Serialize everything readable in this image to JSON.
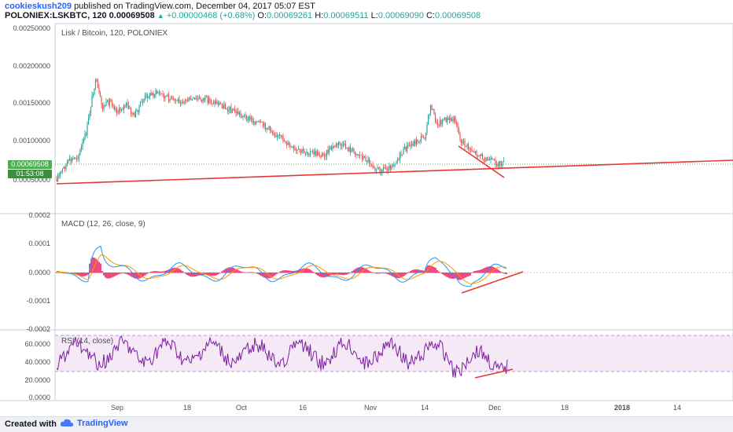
{
  "header": {
    "author": "cookieskush209",
    "published_text": "published on TradingView.com, December 04, 2017 05:07 EST",
    "symbol": "POLONIEX:LSKBTC, 120",
    "last": "0.00069508",
    "change": "+0.00000468 (+0.68%)",
    "o_label": "O:",
    "o_val": "0.00069261",
    "h_label": "H:",
    "h_val": "0.00069511",
    "l_label": "L:",
    "l_val": "0.00069090",
    "c_label": "C:",
    "c_val": "0.00069508"
  },
  "price_pane": {
    "title": "Lisk / Bitcoin, 120, POLONIEX",
    "y_ticks": [
      "0.00250000",
      "0.00200000",
      "0.00150000",
      "0.00100000",
      "0.00050000"
    ],
    "price_tag": "0.00069508",
    "time_tag": "01:53:08"
  },
  "macd_pane": {
    "title": "MACD (12, 26, close, 9)",
    "y_ticks": [
      "0.0002",
      "0.0001",
      "0.0000",
      "-0.0001",
      "-0.0002"
    ]
  },
  "rsi_pane": {
    "title": "RSI (14, close)",
    "y_ticks": [
      "60.0000",
      "40.0000",
      "20.0000",
      "0.0000"
    ]
  },
  "x_axis": {
    "ticks": [
      "Sep",
      "18",
      "Oct",
      "16",
      "Nov",
      "14",
      "Dec",
      "18",
      "2018",
      "14"
    ]
  },
  "footer": {
    "created_with": "Created with",
    "brand": "TradingView"
  },
  "colors": {
    "up": "#26a69a",
    "down": "#ef5350",
    "trendline": "#e53935",
    "macd_line": "#2196f3",
    "signal_line": "#ff9800",
    "histogram": "#e91e63",
    "rsi_line": "#7b1fa2",
    "rsi_band": "#f3e5f5",
    "accent": "#2962ff"
  }
}
